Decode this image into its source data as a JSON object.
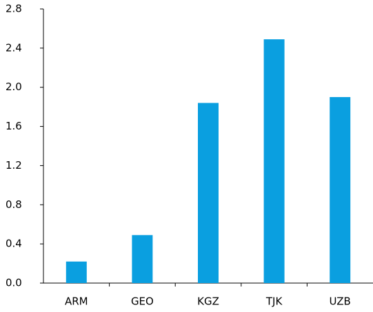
{
  "chart_data": {
    "type": "bar",
    "categories": [
      "ARM",
      "GEO",
      "KGZ",
      "TJK",
      "UZB"
    ],
    "values": [
      0.22,
      0.49,
      1.84,
      2.49,
      1.9
    ],
    "color": "#0a9fe0",
    "ylim": [
      0,
      2.8
    ],
    "yticks": [
      {
        "value": 0,
        "label": "0.0"
      },
      0.4,
      0.8,
      1.2,
      1.6,
      {
        "value": 2,
        "label": "2.0"
      },
      2.4,
      2.8
    ],
    "grid": false
  }
}
